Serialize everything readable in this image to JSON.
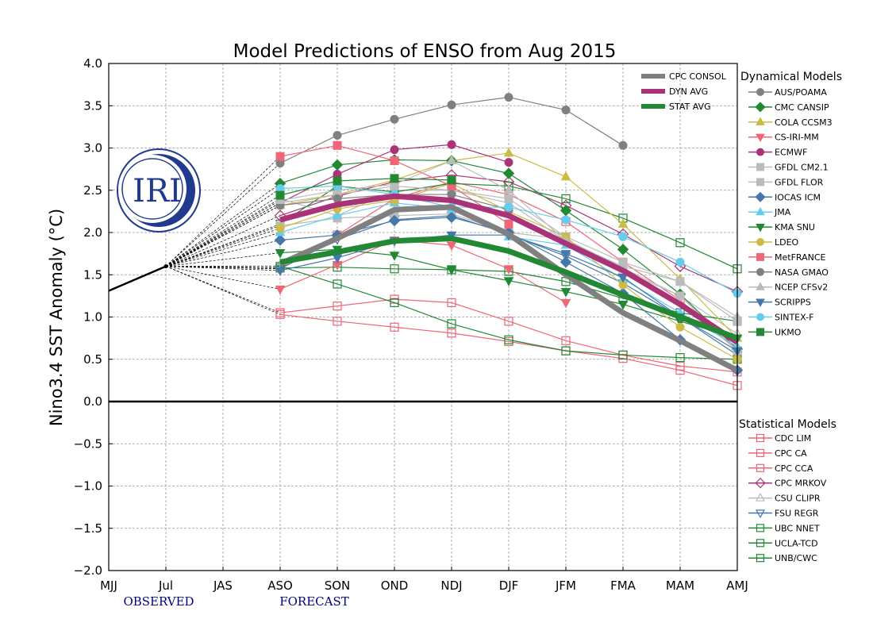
{
  "chart_data": {
    "type": "line",
    "title": "Model Predictions of ENSO from Aug 2015",
    "ylabel": "Nino3.4 SST Anomaly (°C)",
    "xlabel": "",
    "categories": [
      "MJJ",
      "Jul",
      "JAS",
      "ASO",
      "SON",
      "OND",
      "NDJ",
      "DJF",
      "JFM",
      "FMA",
      "MAM",
      "AMJ"
    ],
    "ylim": [
      -2.0,
      4.0
    ],
    "yticks": [
      "4.0",
      "3.5",
      "3.0",
      "2.5",
      "2.0",
      "1.5",
      "1.0",
      "0.5",
      "0.0",
      "−0.5",
      "−1.0",
      "−1.5",
      "−2.0"
    ],
    "grid": true,
    "observed_label": "OBSERVED",
    "forecast_label": "FORECAST",
    "observed": {
      "categories": [
        "MJJ",
        "Jul"
      ],
      "values": [
        1.31,
        1.6
      ]
    },
    "forecast_start": "ASO",
    "averages_legend_placement": "top-right",
    "averages": [
      {
        "name": "CPC CONSOL",
        "color": "#808080",
        "values": [
          1.63,
          1.93,
          2.27,
          2.3,
          1.98,
          1.5,
          1.05,
          0.72,
          0.37
        ]
      },
      {
        "name": "DYN AVG",
        "color": "#aa3377",
        "values": [
          2.15,
          2.33,
          2.43,
          2.38,
          2.2,
          1.87,
          1.55,
          1.15,
          0.7
        ]
      },
      {
        "name": "STAT AVG",
        "color": "#228833",
        "values": [
          1.65,
          1.77,
          1.9,
          1.93,
          1.78,
          1.53,
          1.26,
          1.0,
          0.75
        ]
      }
    ],
    "dynamical_title": "Dynamical Models",
    "dynamical": [
      {
        "name": "AUS/POAMA",
        "color": "#808080",
        "marker": "circle",
        "filled": true,
        "values": [
          2.82,
          3.15,
          3.34,
          3.51,
          3.6,
          3.45,
          3.03,
          null,
          null
        ]
      },
      {
        "name": "CMC CANSIP",
        "color": "#228833",
        "marker": "diamond",
        "filled": true,
        "values": [
          2.58,
          2.8,
          2.86,
          2.85,
          2.7,
          2.26,
          1.8,
          1.27,
          0.62
        ]
      },
      {
        "name": "COLA CCSM3",
        "color": "#ccbb44",
        "marker": "triangle-up",
        "filled": true,
        "values": [
          2.32,
          2.45,
          2.62,
          2.85,
          2.94,
          2.66,
          2.1,
          1.45,
          0.75
        ]
      },
      {
        "name": "CS-IRI-MM",
        "color": "#ee6677",
        "marker": "triangle-down",
        "filled": true,
        "values": [
          1.33,
          1.62,
          1.91,
          1.85,
          1.57,
          1.17,
          null,
          null,
          null
        ]
      },
      {
        "name": "ECMWF",
        "color": "#aa3377",
        "marker": "circle",
        "filled": true,
        "values": [
          2.35,
          2.69,
          2.98,
          3.04,
          2.83,
          null,
          null,
          null,
          null
        ]
      },
      {
        "name": "GFDL CM2.1",
        "color": "#bbbbbb",
        "marker": "square",
        "filled": true,
        "values": [
          2.35,
          2.45,
          2.55,
          2.5,
          2.4,
          1.95,
          1.65,
          1.42,
          0.95
        ]
      },
      {
        "name": "GFDL FLOR",
        "color": "#bbbbbb",
        "marker": "square",
        "filled": true,
        "values": [
          2.08,
          2.17,
          2.2,
          2.22,
          2.0,
          1.92,
          1.58,
          1.25,
          0.6
        ]
      },
      {
        "name": "IOCAS ICM",
        "color": "#4477aa",
        "marker": "diamond",
        "filled": true,
        "values": [
          1.91,
          1.97,
          2.14,
          2.18,
          2.0,
          1.65,
          1.28,
          0.73,
          0.37
        ]
      },
      {
        "name": "JMA",
        "color": "#66ccee",
        "marker": "triangle-up",
        "filled": true,
        "values": [
          2.0,
          2.2,
          2.35,
          2.28,
          1.95,
          1.85,
          1.45,
          1.05,
          0.65
        ]
      },
      {
        "name": "KMA SNU",
        "color": "#228833",
        "marker": "triangle-down",
        "filled": true,
        "values": [
          1.76,
          1.8,
          1.73,
          1.56,
          1.43,
          1.3,
          1.15,
          0.95,
          0.75
        ]
      },
      {
        "name": "LDEO",
        "color": "#ccbb44",
        "marker": "circle",
        "filled": true,
        "values": [
          2.05,
          2.28,
          2.38,
          2.58,
          2.25,
          1.95,
          1.38,
          0.88,
          0.5
        ]
      },
      {
        "name": "MetFRANCE",
        "color": "#ee6677",
        "marker": "square",
        "filled": true,
        "values": [
          2.9,
          3.03,
          2.85,
          2.55,
          2.1,
          null,
          null,
          null,
          null
        ]
      },
      {
        "name": "NASA GMAO",
        "color": "#808080",
        "marker": "circle",
        "filled": true,
        "values": [
          2.32,
          2.4,
          2.45,
          2.45,
          2.27,
          null,
          null,
          null,
          null
        ]
      },
      {
        "name": "NCEP CFSv2",
        "color": "#bbbbbb",
        "marker": "triangle-up",
        "filled": true,
        "values": [
          2.38,
          2.5,
          2.57,
          2.85,
          2.5,
          1.9,
          1.6,
          1.42,
          1.0
        ]
      },
      {
        "name": "SCRIPPS",
        "color": "#4477aa",
        "marker": "triangle-down",
        "filled": true,
        "values": [
          1.55,
          1.7,
          1.9,
          1.97,
          1.97,
          1.75,
          1.47,
          1.0,
          0.6
        ]
      },
      {
        "name": "SINTEX-F",
        "color": "#66ccee",
        "marker": "circle",
        "filled": true,
        "values": [
          2.52,
          2.55,
          2.45,
          2.3,
          2.3,
          2.15,
          1.95,
          1.65,
          1.28
        ]
      },
      {
        "name": "UKMO",
        "color": "#228833",
        "marker": "square",
        "filled": true,
        "values": [
          2.44,
          2.61,
          2.64,
          2.62,
          null,
          null,
          null,
          null,
          null
        ]
      }
    ],
    "statistical_title": "Statistical Models",
    "statistical": [
      {
        "name": "CDC LIM",
        "color": "#ee6677",
        "marker": "square",
        "filled": false,
        "values": [
          1.05,
          1.13,
          1.21,
          1.17,
          0.95,
          0.72,
          0.55,
          0.42,
          0.35
        ]
      },
      {
        "name": "CPC CA",
        "color": "#ee6677",
        "marker": "square",
        "filled": false,
        "values": [
          1.03,
          0.95,
          0.88,
          0.81,
          0.71,
          0.6,
          0.51,
          0.37,
          0.19
        ]
      },
      {
        "name": "CPC CCA",
        "color": "#ee6677",
        "marker": "square",
        "filled": false,
        "values": [
          1.58,
          1.97,
          2.4,
          2.6,
          2.45,
          2.13,
          1.65,
          1.2,
          0.6
        ]
      },
      {
        "name": "CPC MRKOV",
        "color": "#aa3377",
        "marker": "diamond",
        "filled": false,
        "values": [
          2.2,
          2.43,
          2.6,
          2.68,
          2.6,
          2.32,
          1.98,
          1.6,
          1.3
        ]
      },
      {
        "name": "CSU CLIPR",
        "color": "#bbbbbb",
        "marker": "triangle-up",
        "filled": false,
        "values": [
          2.4,
          2.2,
          2.5,
          2.5,
          2.35,
          1.9,
          1.55,
          1.25,
          0.8
        ]
      },
      {
        "name": "FSU REGR",
        "color": "#4477aa",
        "marker": "triangle-down",
        "filled": false,
        "values": [
          1.57,
          1.92,
          2.15,
          2.2,
          1.98,
          1.72,
          1.4,
          1.0,
          0.55
        ]
      },
      {
        "name": "UBC NNET",
        "color": "#228833",
        "marker": "square",
        "filled": false,
        "values": [
          1.6,
          1.39,
          1.17,
          0.92,
          0.73,
          0.6,
          0.55,
          0.52,
          0.5
        ]
      },
      {
        "name": "UCLA-TCD",
        "color": "#228833",
        "marker": "square",
        "filled": false,
        "values": [
          2.1,
          2.55,
          2.48,
          2.58,
          2.55,
          2.4,
          2.17,
          1.88,
          1.57
        ]
      },
      {
        "name": "UNB/CWC",
        "color": "#228833",
        "marker": "square",
        "filled": false,
        "values": [
          1.58,
          1.59,
          1.57,
          1.56,
          1.54,
          1.42,
          1.22,
          1.05,
          0.95
        ]
      }
    ]
  },
  "logo": {
    "text": "IRI",
    "color": "#1f3a8f"
  }
}
